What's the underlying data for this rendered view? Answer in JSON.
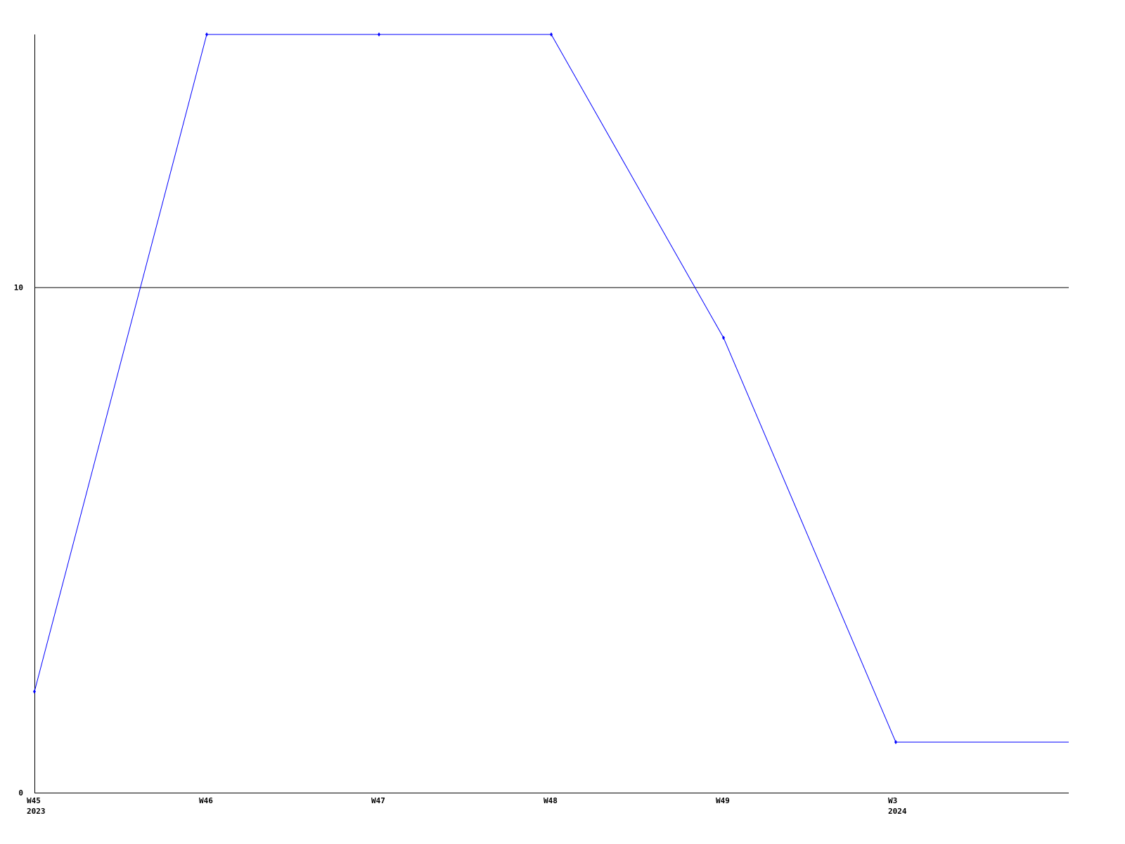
{
  "chart_data": {
    "type": "line",
    "title": "",
    "xlabel": "",
    "ylabel": "",
    "categories": [
      "W45",
      "W46",
      "W47",
      "W48",
      "W49",
      "W3"
    ],
    "category_sublabels": [
      "2023",
      "",
      "",
      "",
      "",
      "2024"
    ],
    "series": [
      {
        "values": [
          2,
          15,
          15,
          15,
          9,
          1
        ],
        "color": "#0000ff"
      }
    ],
    "ylim": [
      0,
      15
    ],
    "yticks": [
      0,
      10
    ],
    "ytick_labels": [
      "0",
      "10"
    ],
    "grid": "horizontal line at 10",
    "legend": "none",
    "axis_color": "#000000",
    "line_continues_flat_to_right_edge": true
  }
}
